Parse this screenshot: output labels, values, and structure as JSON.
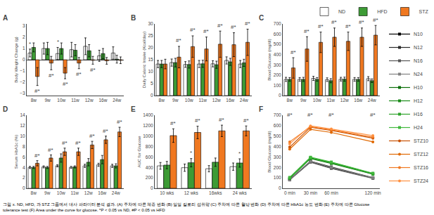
{
  "caption": "그림 x. ND, HFD, 과 STZ 그룹에서 대사 파라미터 분석 결과. (A) 주차에 따른 체중 변화 (B) 일일 칼로리 섭취량 (C) 주차에 따른 혈당 변화 (D) 주차에 따른 HbA1c 농도 변화 (E) 주차에 따른 Glucose tolerance test (F) Area under the curve for glucose. *P < 0.05 vs ND, #P < 0.05 vs HFD",
  "chart_data": [
    {
      "type": "bar",
      "title": "A",
      "ylabel": "Body Weight Change (g)",
      "categories": [
        "8w",
        "9w",
        "10w",
        "11w",
        "12w",
        "16w",
        "24w"
      ],
      "series": [
        {
          "name": "ND",
          "color": "#ffffff",
          "values": [
            0.6,
            1.0,
            0.55,
            0.9,
            1.2,
            0.35,
            0.6
          ],
          "errors": [
            0.35,
            0.5,
            0.55,
            0.65,
            0.75,
            0.5,
            0.55
          ]
        },
        {
          "name": "HFD",
          "color": "#3d9b35",
          "values": [
            1.1,
            1.0,
            1.0,
            0.85,
            0.8,
            0.55,
            0.05
          ],
          "errors": [
            0.4,
            0.55,
            0.5,
            0.5,
            0.55,
            0.45,
            0.35
          ]
        },
        {
          "name": "STZ",
          "color": "#f07820",
          "values": [
            -1.5,
            -0.3,
            -1.2,
            -0.3,
            -0.05,
            -0.1,
            -0.05
          ],
          "errors": [
            0.8,
            0.6,
            0.5,
            0.5,
            0.35,
            0.3,
            0.3
          ]
        }
      ],
      "ylim": [
        -3.2,
        3.2
      ],
      "yticks": [
        -3,
        -2,
        -1,
        0,
        1,
        2,
        3
      ],
      "grid": false,
      "legend": "top",
      "annotations": [
        {
          "text": "*",
          "x": "8w",
          "series": "ND",
          "y": 1.03
        },
        {
          "text": "*",
          "x": "10w",
          "series": "ND",
          "y": 1.18
        },
        {
          "text": "#*",
          "x": "8w",
          "series": "STZ",
          "y": -2.38
        },
        {
          "text": "#*",
          "x": "9w",
          "series": "STZ",
          "y": -0.98
        },
        {
          "text": "#*",
          "x": "10w",
          "series": "STZ",
          "y": -1.78
        },
        {
          "text": "#*",
          "x": "11w",
          "series": "STZ",
          "y": -0.88
        },
        {
          "text": "#*",
          "x": "12w",
          "series": "STZ",
          "y": -0.48
        }
      ]
    },
    {
      "type": "bar",
      "title": "B",
      "ylabel": "Daily Caloric Intake (Kcal/day)",
      "categories": [
        "8w",
        "9w",
        "10w",
        "11w",
        "12w",
        "16w",
        "24w"
      ],
      "series": [
        {
          "name": "ND",
          "color": "#ffffff",
          "values": [
            13.2,
            13.8,
            13.0,
            13.2,
            13.3,
            14.7,
            13.2
          ],
          "errors": [
            1.5,
            1.5,
            1.2,
            1.5,
            1.3,
            1.5,
            1.5
          ]
        },
        {
          "name": "HFD",
          "color": "#3d9b35",
          "values": [
            13.2,
            13.8,
            13.0,
            13.3,
            12.9,
            14.1,
            13.7
          ],
          "errors": [
            1.5,
            1.8,
            1.5,
            1.5,
            1.5,
            1.5,
            1.5
          ]
        },
        {
          "name": "STZ",
          "color": "#f07820",
          "values": [
            13.2,
            16.1,
            20.5,
            19.5,
            21.5,
            21.3,
            22.3
          ],
          "errors": [
            2.0,
            4.5,
            4.5,
            5.0,
            5.5,
            5.0,
            5.5
          ]
        }
      ],
      "ylim": [
        0,
        30
      ],
      "yticks": [
        0,
        5,
        10,
        15,
        20,
        25,
        30
      ],
      "grid": false,
      "annotations": [
        {
          "text": "#*",
          "x": "9w",
          "series": "STZ",
          "y": 21.1
        },
        {
          "text": "#*",
          "x": "10w",
          "series": "STZ",
          "y": 25.5
        },
        {
          "text": "#*",
          "x": "11w",
          "series": "STZ",
          "y": 25.0
        },
        {
          "text": "#*",
          "x": "12w",
          "series": "STZ",
          "y": 27.5
        },
        {
          "text": "#*",
          "x": "16w",
          "series": "STZ",
          "y": 26.8
        },
        {
          "text": "#*",
          "x": "24w",
          "series": "STZ",
          "y": 28.3
        }
      ]
    },
    {
      "type": "bar",
      "title": "C",
      "ylabel": "Blood Glucose (mg/dl)",
      "categories": [
        "8w",
        "9w",
        "10w",
        "11w",
        "12w",
        "16w",
        "24w"
      ],
      "series": [
        {
          "name": "ND",
          "color": "#ffffff",
          "values": [
            158,
            158,
            168,
            155,
            160,
            158,
            165
          ],
          "errors": [
            20,
            18,
            20,
            18,
            18,
            18,
            20
          ]
        },
        {
          "name": "HFD",
          "color": "#3d9b35",
          "values": [
            158,
            158,
            158,
            145,
            160,
            158,
            145
          ],
          "errors": [
            18,
            20,
            18,
            20,
            20,
            18,
            18
          ]
        },
        {
          "name": "STZ",
          "color": "#f07820",
          "values": [
            270,
            455,
            520,
            570,
            530,
            570,
            590
          ],
          "errors": [
            100,
            120,
            100,
            90,
            90,
            90,
            95
          ]
        }
      ],
      "ylim": [
        0,
        700
      ],
      "yticks": [
        0,
        100,
        200,
        300,
        400,
        500,
        600,
        700
      ],
      "grid": false,
      "annotations": [
        {
          "text": "#*",
          "x": "8w",
          "series": "STZ",
          "y": 380
        },
        {
          "text": "#*",
          "x": "9w",
          "series": "STZ",
          "y": 585
        },
        {
          "text": "#*",
          "x": "10w",
          "series": "STZ",
          "y": 630
        },
        {
          "text": "#*",
          "x": "11w",
          "series": "STZ",
          "y": 670
        },
        {
          "text": "#*",
          "x": "12w",
          "series": "STZ",
          "y": 630
        },
        {
          "text": "#*",
          "x": "16w",
          "series": "STZ",
          "y": 670
        },
        {
          "text": "#*",
          "x": "24w",
          "series": "STZ",
          "y": 695
        }
      ]
    },
    {
      "type": "bar",
      "title": "D",
      "ylabel": "Serum HbA1c (%)",
      "categories": [
        "8w",
        "9w",
        "10w",
        "11w",
        "12w",
        "16w",
        "24w"
      ],
      "series": [
        {
          "name": "ND",
          "color": "#ffffff",
          "values": [
            4.0,
            4.1,
            4.3,
            4.0,
            4.3,
            4.5,
            4.3
          ],
          "errors": [
            0.2,
            0.2,
            0.2,
            0.2,
            0.3,
            0.3,
            0.3
          ]
        },
        {
          "name": "HFD",
          "color": "#3d9b35",
          "values": [
            4.0,
            4.0,
            5.8,
            4.1,
            5.0,
            5.5,
            4.3
          ],
          "errors": [
            0.2,
            0.2,
            0.8,
            0.2,
            0.7,
            0.8,
            0.4
          ]
        },
        {
          "name": "STZ",
          "color": "#f07820",
          "values": [
            4.8,
            5.8,
            7.0,
            7.0,
            8.3,
            9.3,
            10.8
          ],
          "errors": [
            0.5,
            0.6,
            0.7,
            0.7,
            0.7,
            0.7,
            0.9
          ]
        }
      ],
      "ylim": [
        0,
        14
      ],
      "yticks": [
        0,
        2,
        4,
        6,
        8,
        10,
        12,
        14
      ],
      "grid": false,
      "annotations": [
        {
          "text": "#*",
          "x": "8w",
          "series": "STZ",
          "y": 5.42
        },
        {
          "text": "#*",
          "x": "9w",
          "series": "STZ",
          "y": 6.52
        },
        {
          "text": "#*",
          "x": "10w",
          "series": "STZ",
          "y": 7.82
        },
        {
          "text": "#*",
          "x": "11w",
          "series": "STZ",
          "y": 7.82
        },
        {
          "text": "#*",
          "x": "12w",
          "series": "STZ",
          "y": 9.12
        },
        {
          "text": "#*",
          "x": "16w",
          "series": "STZ",
          "y": 10.12
        },
        {
          "text": "#*",
          "x": "24w",
          "series": "STZ",
          "y": 11.82
        }
      ]
    },
    {
      "type": "bar",
      "title": "E",
      "ylabel": "AUC for Glucose",
      "categories": [
        "10 wks",
        "12 wks",
        "16wks",
        "24 wks"
      ],
      "series": [
        {
          "name": "ND",
          "color": "#ffffff",
          "values": [
            430,
            395,
            375,
            415
          ],
          "errors": [
            65,
            70,
            60,
            70
          ]
        },
        {
          "name": "HFD",
          "color": "#3d9b35",
          "values": [
            445,
            490,
            500,
            485
          ],
          "errors": [
            70,
            80,
            80,
            80
          ]
        },
        {
          "name": "STZ",
          "color": "#f07820",
          "values": [
            1010,
            1070,
            1100,
            1100
          ],
          "errors": [
            130,
            120,
            110,
            95
          ]
        }
      ],
      "ylim": [
        0,
        1400
      ],
      "yticks": [
        0,
        200,
        400,
        600,
        800,
        1000,
        1200,
        1400
      ],
      "grid": false,
      "annotations": [
        {
          "text": "#*",
          "x": "10 wks",
          "series": "STZ",
          "y": 1160
        },
        {
          "text": "#*",
          "x": "12 wks",
          "series": "STZ",
          "y": 1210
        },
        {
          "text": "#*",
          "x": "16wks",
          "series": "STZ",
          "y": 1230
        },
        {
          "text": "#*",
          "x": "24 wks",
          "series": "STZ",
          "y": 1215
        },
        {
          "text": "*",
          "x": "12 wks",
          "series": "HFD",
          "y": 590
        },
        {
          "text": "*",
          "x": "24 wks",
          "series": "HFD",
          "y": 585
        }
      ]
    },
    {
      "type": "line",
      "title": "F",
      "ylabel": "Blood Glucose (mg/dl)",
      "x": [
        0,
        30,
        60,
        120
      ],
      "xlim": [
        -10,
        130
      ],
      "xticks": [
        {
          "value": 0,
          "label": "0 min"
        },
        {
          "value": 30,
          "label": "30 min"
        },
        {
          "value": 60,
          "label": "60 min"
        },
        {
          "value": 120,
          "label": "120 min"
        }
      ],
      "series": [
        {
          "name": "N10",
          "color": "#000000",
          "marker": "square",
          "values": [
            82,
            255,
            195,
            98
          ]
        },
        {
          "name": "N12",
          "color": "#2a2a2a",
          "marker": "square",
          "values": [
            85,
            260,
            205,
            102
          ]
        },
        {
          "name": "N16",
          "color": "#555555",
          "marker": "square",
          "values": [
            80,
            250,
            190,
            95
          ]
        },
        {
          "name": "N24",
          "color": "#808080",
          "marker": "square",
          "values": [
            83,
            258,
            200,
            100
          ]
        },
        {
          "name": "H10",
          "color": "#0a6e08",
          "marker": "square",
          "values": [
            95,
            285,
            238,
            135
          ]
        },
        {
          "name": "H12",
          "color": "#1a8a18",
          "marker": "square",
          "values": [
            100,
            292,
            248,
            140
          ]
        },
        {
          "name": "H16",
          "color": "#2da32a",
          "marker": "square",
          "values": [
            97,
            288,
            243,
            138
          ]
        },
        {
          "name": "H24",
          "color": "#40b83c",
          "marker": "square",
          "values": [
            105,
            298,
            252,
            145
          ]
        },
        {
          "name": "STZ10",
          "color": "#c85000",
          "marker": "circle",
          "values": [
            395,
            585,
            555,
            480
          ]
        },
        {
          "name": "STZ12",
          "color": "#e06800",
          "marker": "circle",
          "values": [
            375,
            565,
            535,
            445
          ]
        },
        {
          "name": "STZ16",
          "color": "#f07820",
          "marker": "circle",
          "values": [
            445,
            590,
            560,
            490
          ]
        },
        {
          "name": "STZ24",
          "color": "#ff9040",
          "marker": "circle",
          "values": [
            425,
            598,
            568,
            505
          ]
        }
      ],
      "ylim": [
        0,
        700
      ],
      "yticks": [
        0,
        100,
        200,
        300,
        400,
        500,
        600,
        700
      ],
      "grid": false,
      "legend": "right",
      "annotations": [
        {
          "text": "#*",
          "x": 0,
          "y": 658
        },
        {
          "text": "#*",
          "x": 30,
          "y": 658
        },
        {
          "text": "#*",
          "x": 60,
          "y": 658
        },
        {
          "text": "#*",
          "x": 120,
          "y": 658
        }
      ]
    }
  ]
}
